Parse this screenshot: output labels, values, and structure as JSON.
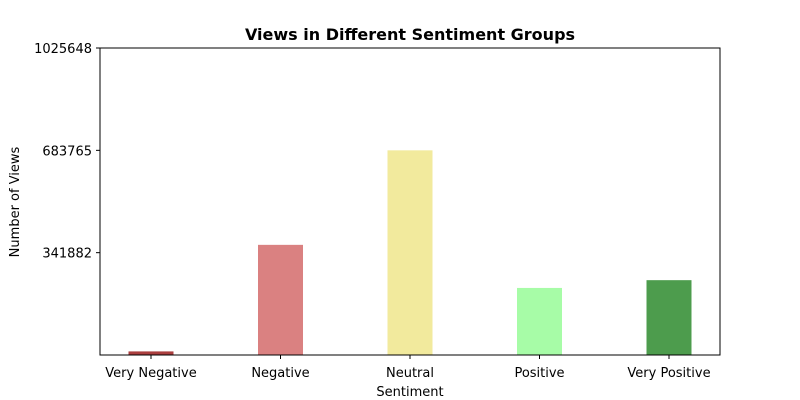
{
  "chart_data": {
    "type": "bar",
    "title": "Views in Different Sentiment Groups",
    "xlabel": "Sentiment",
    "ylabel": "Number of Views",
    "categories": [
      "Very Negative",
      "Negative",
      "Neutral",
      "Positive",
      "Very Positive"
    ],
    "values": [
      12000,
      368000,
      683765,
      224000,
      250000
    ],
    "colors": [
      "#9b1c1c",
      "#d36b6b",
      "#f0e68c",
      "#98fb98",
      "#2e8b2e"
    ],
    "ylim": [
      0,
      1025648
    ],
    "yticks": [
      341882,
      683765,
      1025648
    ],
    "ytick_labels": [
      "341882",
      "683765",
      "1025648"
    ],
    "grid": false
  }
}
